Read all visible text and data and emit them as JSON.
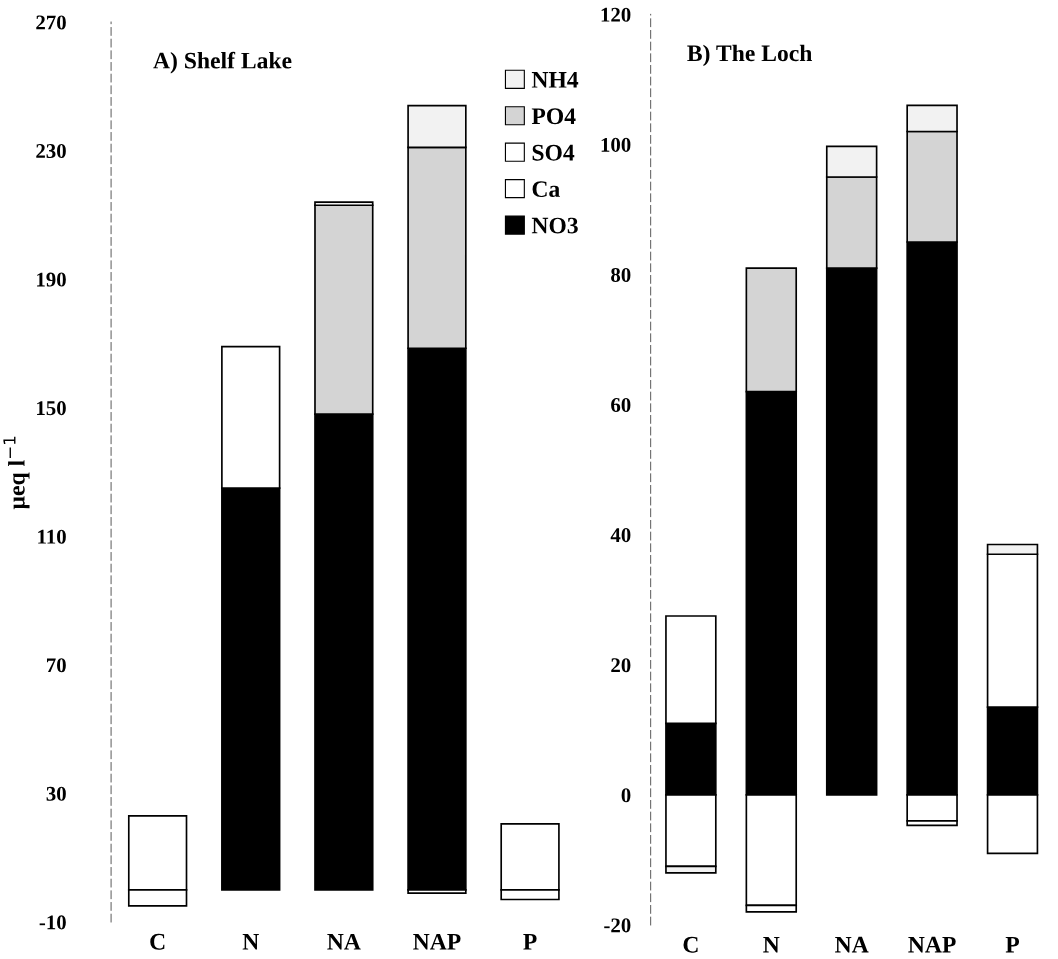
{
  "chart_data": [
    {
      "type": "bar",
      "stacked": true,
      "title": "A) Shelf Lake",
      "ylabel": "µeq l$^{−1}$",
      "categories": [
        "C",
        "N",
        "NA",
        "NAP",
        "P"
      ],
      "ylim": [
        -10,
        270
      ],
      "yticks": [
        -10,
        30,
        70,
        110,
        150,
        190,
        230,
        270
      ],
      "grid": false,
      "legend": "top right",
      "series": [
        {
          "name": "NO3",
          "color": "#000000",
          "values": [
            null,
            125,
            148,
            168.5,
            null
          ]
        },
        {
          "name": "Ca",
          "color": "#ffffff",
          "values": [
            23,
            44,
            null,
            null,
            20.5
          ]
        },
        {
          "name": "SO4",
          "color": "#ffffff",
          "values": [
            -5,
            null,
            null,
            -1,
            -3
          ]
        },
        {
          "name": "PO4",
          "color": "#d4d4d4",
          "values": [
            null,
            null,
            65,
            62.5,
            null
          ]
        },
        {
          "name": "NH4",
          "color": "#f2f2f2",
          "values": [
            null,
            null,
            1,
            13,
            null
          ]
        }
      ]
    },
    {
      "type": "bar",
      "stacked": true,
      "title": "B) The Loch",
      "categories": [
        "C",
        "N",
        "NA",
        "NAP",
        "P"
      ],
      "ylim": [
        -20,
        120
      ],
      "yticks": [
        -20,
        0,
        20,
        40,
        60,
        80,
        100,
        120
      ],
      "grid": false,
      "legend": false,
      "series": [
        {
          "color": "#000000",
          "values": [
            11,
            62,
            81,
            85,
            13.5
          ]
        },
        {
          "color": "#ffffff",
          "values": [
            16.5,
            -17,
            null,
            -4,
            23.5
          ]
        },
        {
          "color": "#ffffff",
          "values": [
            -11,
            -1,
            null,
            -0.7,
            -9
          ]
        },
        {
          "color": "#d4d4d4",
          "values": [
            null,
            19,
            14,
            17,
            null
          ]
        },
        {
          "color": "#f2f2f2",
          "values": [
            -1,
            null,
            4.7,
            4,
            1.5
          ]
        }
      ]
    }
  ]
}
